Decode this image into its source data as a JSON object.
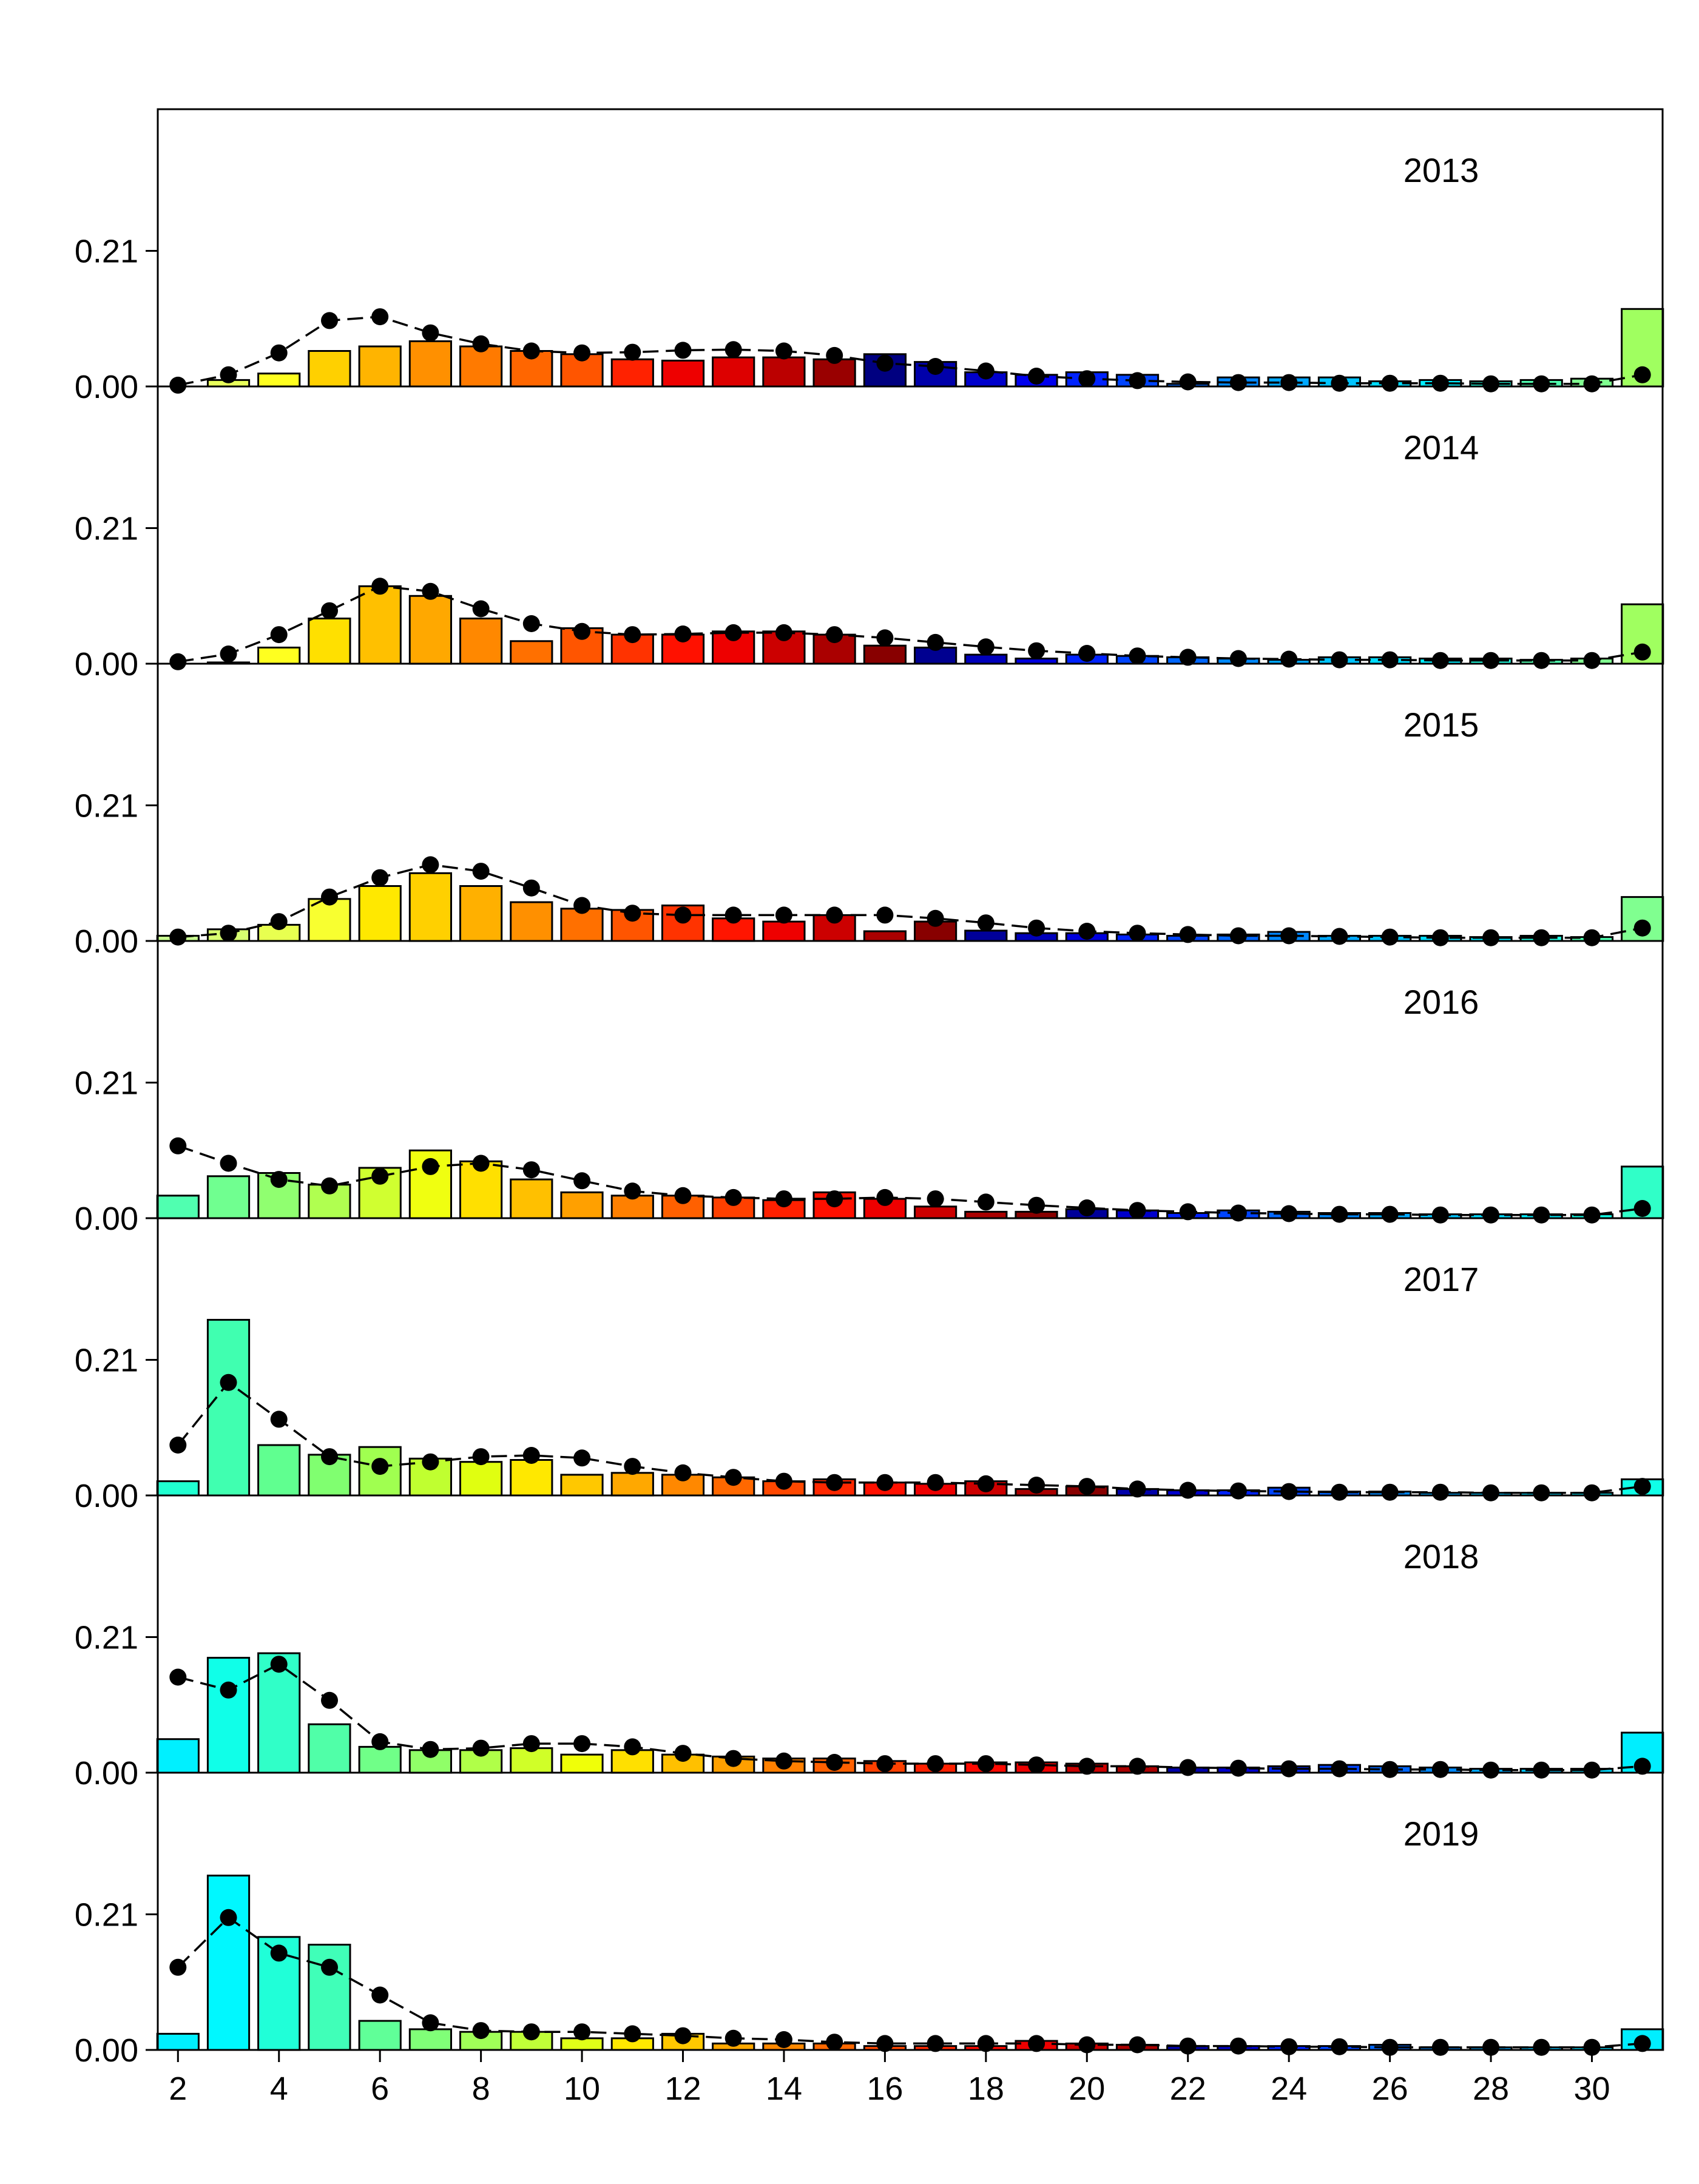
{
  "chart_data": {
    "type": "bar",
    "x": [
      2,
      3,
      4,
      5,
      6,
      7,
      8,
      9,
      10,
      11,
      12,
      13,
      14,
      15,
      16,
      17,
      18,
      19,
      20,
      21,
      22,
      23,
      24,
      25,
      26,
      27,
      28,
      29,
      30,
      31
    ],
    "x_tick_labels": [
      "2",
      "4",
      "6",
      "8",
      "10",
      "12",
      "14",
      "16",
      "18",
      "20",
      "22",
      "24",
      "26",
      "28",
      "30"
    ],
    "y_tick_labels": [
      "0.00",
      "0.21"
    ],
    "ylim": [
      0,
      0.42
    ],
    "xlim": [
      1.6,
      31.4
    ],
    "bar_outline": "#000000",
    "line_style": "dashed",
    "marker": "filled-circle",
    "panels": [
      {
        "label": "2013",
        "bar_colors": [
          "#ffffff",
          "#e8ff5a",
          "#ffff20",
          "#ffd000",
          "#ffb400",
          "#ff9000",
          "#ff7a00",
          "#ff6600",
          "#ff5500",
          "#ff2200",
          "#ee0000",
          "#dd0000",
          "#bb0000",
          "#990000",
          "#000080",
          "#0000aa",
          "#0000cc",
          "#0000ee",
          "#0022ff",
          "#0044ff",
          "#0066ff",
          "#0088ff",
          "#00a8ff",
          "#00c4ff",
          "#00dcff",
          "#00eeff",
          "#20ffe0",
          "#50ffb0",
          "#80ff90",
          "#a0ff60"
        ],
        "bar_values": [
          0.0,
          0.01,
          0.02,
          0.055,
          0.062,
          0.07,
          0.062,
          0.055,
          0.05,
          0.042,
          0.04,
          0.045,
          0.045,
          0.042,
          0.05,
          0.038,
          0.022,
          0.018,
          0.022,
          0.018,
          0.004,
          0.014,
          0.014,
          0.014,
          0.008,
          0.01,
          0.008,
          0.01,
          0.012,
          0.12
        ],
        "line_values": [
          0.002,
          0.018,
          0.052,
          0.102,
          0.108,
          0.083,
          0.066,
          0.055,
          0.052,
          0.053,
          0.056,
          0.057,
          0.055,
          0.048,
          0.036,
          0.031,
          0.024,
          0.016,
          0.012,
          0.009,
          0.007,
          0.006,
          0.006,
          0.005,
          0.005,
          0.005,
          0.004,
          0.004,
          0.004,
          0.018
        ]
      },
      {
        "label": "2014",
        "bar_colors": [
          "#ffffff",
          "#f0ff40",
          "#ffff20",
          "#ffe000",
          "#ffc000",
          "#ffa800",
          "#ff8800",
          "#ff7000",
          "#ff5500",
          "#ff3300",
          "#ff1100",
          "#ee0000",
          "#cc0000",
          "#aa0000",
          "#880000",
          "#000090",
          "#0000bb",
          "#0000dd",
          "#0022ff",
          "#0044ff",
          "#0066ff",
          "#0088ff",
          "#00a8ff",
          "#00c4ff",
          "#00dcff",
          "#00eeff",
          "#20ffe0",
          "#50ffb0",
          "#80ff90",
          "#a0ff60"
        ],
        "bar_values": [
          0.0,
          0.002,
          0.025,
          0.07,
          0.12,
          0.105,
          0.07,
          0.035,
          0.055,
          0.045,
          0.045,
          0.05,
          0.05,
          0.045,
          0.028,
          0.025,
          0.014,
          0.008,
          0.014,
          0.012,
          0.01,
          0.008,
          0.006,
          0.01,
          0.01,
          0.008,
          0.008,
          0.006,
          0.008,
          0.092
        ]
      },
      {
        "label": "2015",
        "bar_colors": [
          "#c8ff90",
          "#d8ff70",
          "#e8ff50",
          "#f8ff30",
          "#ffe800",
          "#ffd000",
          "#ffb000",
          "#ff9000",
          "#ff7000",
          "#ff5500",
          "#ff3300",
          "#ff1500",
          "#ee0000",
          "#cc0000",
          "#aa0000",
          "#880000",
          "#000099",
          "#0000bb",
          "#0000dd",
          "#0022ff",
          "#0044ff",
          "#0066ff",
          "#0088ff",
          "#00a8ff",
          "#00c4ff",
          "#00dcff",
          "#00eeff",
          "#20ffe0",
          "#50ffb0",
          "#80ff90"
        ],
        "bar_values": [
          0.008,
          0.018,
          0.025,
          0.065,
          0.085,
          0.105,
          0.085,
          0.06,
          0.05,
          0.048,
          0.055,
          0.035,
          0.03,
          0.04,
          0.015,
          0.03,
          0.016,
          0.012,
          0.012,
          0.01,
          0.008,
          0.01,
          0.014,
          0.008,
          0.008,
          0.008,
          0.006,
          0.008,
          0.006,
          0.068
        ]
      },
      {
        "label": "2016",
        "bar_colors": [
          "#50ffb0",
          "#70ff90",
          "#90ff70",
          "#b0ff50",
          "#d0ff30",
          "#f0ff10",
          "#ffe000",
          "#ffc000",
          "#ffa000",
          "#ff8000",
          "#ff6000",
          "#ff4000",
          "#ff2000",
          "#ff1000",
          "#ee0000",
          "#cc0000",
          "#aa0000",
          "#880000",
          "#000099",
          "#0000cc",
          "#0022ff",
          "#0044ff",
          "#0066ff",
          "#0088ff",
          "#00a8ff",
          "#00c4ff",
          "#00dcff",
          "#00eeff",
          "#10ffe8",
          "#30ffc8"
        ],
        "bar_values": [
          0.035,
          0.065,
          0.07,
          0.052,
          0.078,
          0.105,
          0.088,
          0.06,
          0.04,
          0.035,
          0.035,
          0.032,
          0.028,
          0.04,
          0.03,
          0.018,
          0.01,
          0.01,
          0.014,
          0.012,
          0.008,
          0.012,
          0.01,
          0.008,
          0.008,
          0.006,
          0.006,
          0.006,
          0.006,
          0.08
        ]
      },
      {
        "label": "2017",
        "bar_colors": [
          "#20ffd0",
          "#40ffb0",
          "#60ff90",
          "#80ff70",
          "#a0ff50",
          "#c0ff30",
          "#e0ff10",
          "#ffe800",
          "#ffc800",
          "#ffa800",
          "#ff8800",
          "#ff6800",
          "#ff4800",
          "#ff2800",
          "#ff1000",
          "#ee0000",
          "#cc0000",
          "#aa0000",
          "#880000",
          "#0000aa",
          "#0000cc",
          "#0022ff",
          "#0044ff",
          "#0066ff",
          "#0088ff",
          "#00a8ff",
          "#00c4ff",
          "#00dcff",
          "#00eeff",
          "#10ffe8"
        ],
        "bar_values": [
          0.022,
          0.272,
          0.078,
          0.063,
          0.075,
          0.057,
          0.052,
          0.055,
          0.032,
          0.035,
          0.032,
          0.028,
          0.022,
          0.025,
          0.02,
          0.018,
          0.022,
          0.01,
          0.014,
          0.01,
          0.008,
          0.008,
          0.012,
          0.006,
          0.006,
          0.004,
          0.004,
          0.004,
          0.004,
          0.025
        ]
      },
      {
        "label": "2018",
        "bar_colors": [
          "#00f0ff",
          "#10ffe8",
          "#30ffc8",
          "#50ffa8",
          "#70ff88",
          "#90ff68",
          "#b0ff48",
          "#d0ff28",
          "#f0ff08",
          "#ffe000",
          "#ffc000",
          "#ffa000",
          "#ff8000",
          "#ff6000",
          "#ff4000",
          "#ff2000",
          "#ff0800",
          "#ee0000",
          "#cc0000",
          "#aa0000",
          "#0000aa",
          "#0000cc",
          "#0022ff",
          "#0044ff",
          "#0066ff",
          "#0088ff",
          "#00a8ff",
          "#00c4ff",
          "#00dcff",
          "#00eeff"
        ],
        "bar_values": [
          0.052,
          0.178,
          0.185,
          0.075,
          0.04,
          0.035,
          0.035,
          0.038,
          0.028,
          0.035,
          0.028,
          0.025,
          0.022,
          0.022,
          0.018,
          0.014,
          0.016,
          0.016,
          0.014,
          0.01,
          0.008,
          0.008,
          0.01,
          0.012,
          0.01,
          0.008,
          0.006,
          0.006,
          0.006,
          0.062
        ]
      },
      {
        "label": "2019",
        "bar_colors": [
          "#00f0ff",
          "#00f8ff",
          "#20ffd8",
          "#40ffb8",
          "#60ff98",
          "#80ff78",
          "#a0ff58",
          "#c0ff38",
          "#e0ff18",
          "#ffe800",
          "#ffc800",
          "#ffa800",
          "#ff8800",
          "#ff6800",
          "#ff4800",
          "#ff2800",
          "#ff0800",
          "#ee0000",
          "#cc0000",
          "#aa0000",
          "#0000aa",
          "#0000cc",
          "#0022ff",
          "#0044ff",
          "#0066ff",
          "#0088ff",
          "#00a8ff",
          "#00c4ff",
          "#00dcff",
          "#00eeff"
        ],
        "bar_values": [
          0.025,
          0.27,
          0.175,
          0.163,
          0.045,
          0.032,
          0.028,
          0.028,
          0.018,
          0.018,
          0.025,
          0.01,
          0.01,
          0.01,
          0.006,
          0.006,
          0.006,
          0.014,
          0.01,
          0.008,
          0.006,
          0.006,
          0.006,
          0.006,
          0.008,
          0.004,
          0.004,
          0.004,
          0.004,
          0.032
        ]
      }
    ],
    "panel_line_values": [
      [
        0.002,
        0.018,
        0.052,
        0.102,
        0.108,
        0.083,
        0.066,
        0.055,
        0.052,
        0.053,
        0.056,
        0.057,
        0.055,
        0.048,
        0.036,
        0.031,
        0.024,
        0.016,
        0.012,
        0.009,
        0.007,
        0.006,
        0.006,
        0.005,
        0.005,
        0.005,
        0.004,
        0.004,
        0.004,
        0.018
      ],
      [
        0.003,
        0.015,
        0.045,
        0.082,
        0.12,
        0.112,
        0.085,
        0.062,
        0.05,
        0.045,
        0.046,
        0.048,
        0.048,
        0.045,
        0.04,
        0.033,
        0.026,
        0.02,
        0.016,
        0.012,
        0.01,
        0.008,
        0.007,
        0.006,
        0.006,
        0.005,
        0.005,
        0.005,
        0.005,
        0.018
      ],
      [
        0.006,
        0.012,
        0.03,
        0.068,
        0.098,
        0.118,
        0.108,
        0.082,
        0.055,
        0.043,
        0.04,
        0.04,
        0.04,
        0.04,
        0.04,
        0.035,
        0.028,
        0.02,
        0.015,
        0.012,
        0.01,
        0.008,
        0.008,
        0.007,
        0.006,
        0.005,
        0.005,
        0.005,
        0.005,
        0.02
      ],
      [
        0.112,
        0.085,
        0.06,
        0.05,
        0.065,
        0.08,
        0.085,
        0.075,
        0.058,
        0.042,
        0.035,
        0.032,
        0.03,
        0.03,
        0.032,
        0.03,
        0.025,
        0.02,
        0.016,
        0.012,
        0.01,
        0.008,
        0.007,
        0.006,
        0.006,
        0.005,
        0.005,
        0.005,
        0.005,
        0.015
      ],
      [
        0.078,
        0.175,
        0.118,
        0.06,
        0.045,
        0.052,
        0.06,
        0.062,
        0.058,
        0.045,
        0.035,
        0.028,
        0.022,
        0.02,
        0.02,
        0.02,
        0.018,
        0.016,
        0.014,
        0.01,
        0.008,
        0.007,
        0.006,
        0.005,
        0.005,
        0.005,
        0.004,
        0.004,
        0.004,
        0.014
      ],
      [
        0.148,
        0.128,
        0.168,
        0.112,
        0.048,
        0.036,
        0.038,
        0.045,
        0.045,
        0.04,
        0.03,
        0.022,
        0.018,
        0.016,
        0.014,
        0.014,
        0.014,
        0.012,
        0.01,
        0.01,
        0.008,
        0.007,
        0.006,
        0.006,
        0.005,
        0.005,
        0.004,
        0.004,
        0.004,
        0.01
      ],
      [
        0.128,
        0.205,
        0.15,
        0.128,
        0.085,
        0.042,
        0.03,
        0.028,
        0.028,
        0.025,
        0.022,
        0.018,
        0.016,
        0.012,
        0.01,
        0.01,
        0.01,
        0.01,
        0.008,
        0.008,
        0.006,
        0.006,
        0.005,
        0.005,
        0.004,
        0.004,
        0.004,
        0.004,
        0.004,
        0.01
      ]
    ]
  }
}
